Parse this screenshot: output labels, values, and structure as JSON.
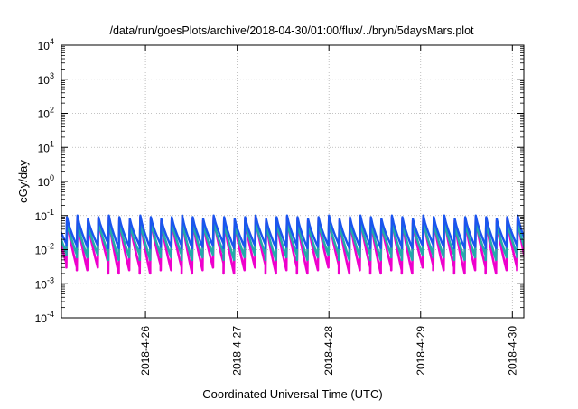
{
  "chart_data": {
    "type": "line",
    "title": "/data/run/goesPlots/archive/2018-04-30/01:00/flux/../bryn/5daysMars.plot",
    "xlabel": "Coordinated Universal Time (UTC)",
    "ylabel": "cGy/day",
    "yscale": "log",
    "ylim": [
      0.0001,
      10000
    ],
    "x_range_days": [
      "2018-04-25T02:00",
      "2018-04-30T03:00"
    ],
    "x_ticks": [
      {
        "date": "2018-04-26",
        "label": "2018-4-26"
      },
      {
        "date": "2018-04-27",
        "label": "2018-4-27"
      },
      {
        "date": "2018-04-28",
        "label": "2018-4-28"
      },
      {
        "date": "2018-04-29",
        "label": "2018-4-29"
      },
      {
        "date": "2018-04-30",
        "label": "2018-4-30"
      }
    ],
    "y_ticks": [
      {
        "value": 0.0001,
        "base": "10",
        "exp": "-4"
      },
      {
        "value": 0.001,
        "base": "10",
        "exp": "-3"
      },
      {
        "value": 0.01,
        "base": "10",
        "exp": "-2"
      },
      {
        "value": 0.1,
        "base": "10",
        "exp": "-1"
      },
      {
        "value": 1,
        "base": "10",
        "exp": "0"
      },
      {
        "value": 10,
        "base": "10",
        "exp": "1"
      },
      {
        "value": 100,
        "base": "10",
        "exp": "2"
      },
      {
        "value": 1000,
        "base": "10",
        "exp": "3"
      },
      {
        "value": 10000,
        "base": "10",
        "exp": "4"
      }
    ],
    "grid": true,
    "pattern": "sawtooth, ~45 cycles per 5 days; each cycle rises sharply to a peak then decays",
    "series": [
      {
        "color": "#ee00cc",
        "peak_values": [
          0.07,
          0.08,
          0.09,
          0.07,
          0.08,
          0.09,
          0.08,
          0.07,
          0.09,
          0.08,
          0.07,
          0.08,
          0.09,
          0.08,
          0.07,
          0.09,
          0.08,
          0.07,
          0.08,
          0.09,
          0.07,
          0.08,
          0.09,
          0.08,
          0.07,
          0.08,
          0.09,
          0.07,
          0.08,
          0.09,
          0.08,
          0.07,
          0.09,
          0.08,
          0.07,
          0.09,
          0.08,
          0.09,
          0.07,
          0.08,
          0.09,
          0.08,
          0.07,
          0.08,
          0.09
        ],
        "min_values": [
          0.004,
          0.003,
          0.0025,
          0.003,
          0.004,
          0.002,
          0.0025,
          0.003,
          0.002,
          0.0035,
          0.0025,
          0.003,
          0.002,
          0.0025,
          0.003,
          0.004,
          0.002,
          0.0025,
          0.003,
          0.0035,
          0.002,
          0.0025,
          0.003,
          0.002,
          0.0025,
          0.003,
          0.0035,
          0.002,
          0.0025,
          0.003,
          0.002,
          0.003,
          0.0025,
          0.002,
          0.003,
          0.0035,
          0.0025,
          0.003,
          0.002,
          0.0025,
          0.003,
          0.002,
          0.0025,
          0.003,
          0.0025
        ]
      },
      {
        "color": "#22aaaa",
        "peak_values": [
          0.06,
          0.07,
          0.07,
          0.06,
          0.07,
          0.07,
          0.07,
          0.06,
          0.07,
          0.07,
          0.06,
          0.07,
          0.07,
          0.07,
          0.06,
          0.07,
          0.07,
          0.06,
          0.07,
          0.07,
          0.06,
          0.07,
          0.07,
          0.07,
          0.06,
          0.07,
          0.07,
          0.06,
          0.07,
          0.07,
          0.07,
          0.06,
          0.07,
          0.07,
          0.06,
          0.07,
          0.07,
          0.07,
          0.06,
          0.07,
          0.07,
          0.07,
          0.06,
          0.07,
          0.07
        ],
        "min_values": [
          0.008,
          0.007,
          0.006,
          0.007,
          0.008,
          0.005,
          0.006,
          0.007,
          0.005,
          0.007,
          0.006,
          0.007,
          0.005,
          0.006,
          0.007,
          0.008,
          0.005,
          0.006,
          0.007,
          0.007,
          0.005,
          0.006,
          0.007,
          0.005,
          0.006,
          0.007,
          0.007,
          0.005,
          0.006,
          0.007,
          0.005,
          0.007,
          0.006,
          0.005,
          0.007,
          0.007,
          0.006,
          0.007,
          0.005,
          0.006,
          0.007,
          0.005,
          0.006,
          0.007,
          0.006
        ]
      },
      {
        "color": "#1a55ee",
        "peak_values": [
          0.08,
          0.09,
          0.1,
          0.08,
          0.09,
          0.1,
          0.09,
          0.08,
          0.1,
          0.09,
          0.08,
          0.09,
          0.1,
          0.09,
          0.08,
          0.1,
          0.09,
          0.08,
          0.09,
          0.1,
          0.08,
          0.09,
          0.1,
          0.09,
          0.08,
          0.09,
          0.1,
          0.08,
          0.09,
          0.1,
          0.09,
          0.08,
          0.1,
          0.09,
          0.08,
          0.1,
          0.09,
          0.1,
          0.08,
          0.09,
          0.1,
          0.09,
          0.08,
          0.09,
          0.1
        ],
        "min_values": [
          0.015,
          0.013,
          0.012,
          0.013,
          0.015,
          0.011,
          0.012,
          0.013,
          0.011,
          0.014,
          0.012,
          0.013,
          0.011,
          0.012,
          0.013,
          0.015,
          0.011,
          0.012,
          0.013,
          0.014,
          0.011,
          0.012,
          0.013,
          0.011,
          0.012,
          0.013,
          0.014,
          0.011,
          0.012,
          0.013,
          0.011,
          0.013,
          0.012,
          0.011,
          0.013,
          0.014,
          0.012,
          0.013,
          0.011,
          0.012,
          0.013,
          0.011,
          0.012,
          0.013,
          0.012
        ]
      }
    ]
  }
}
